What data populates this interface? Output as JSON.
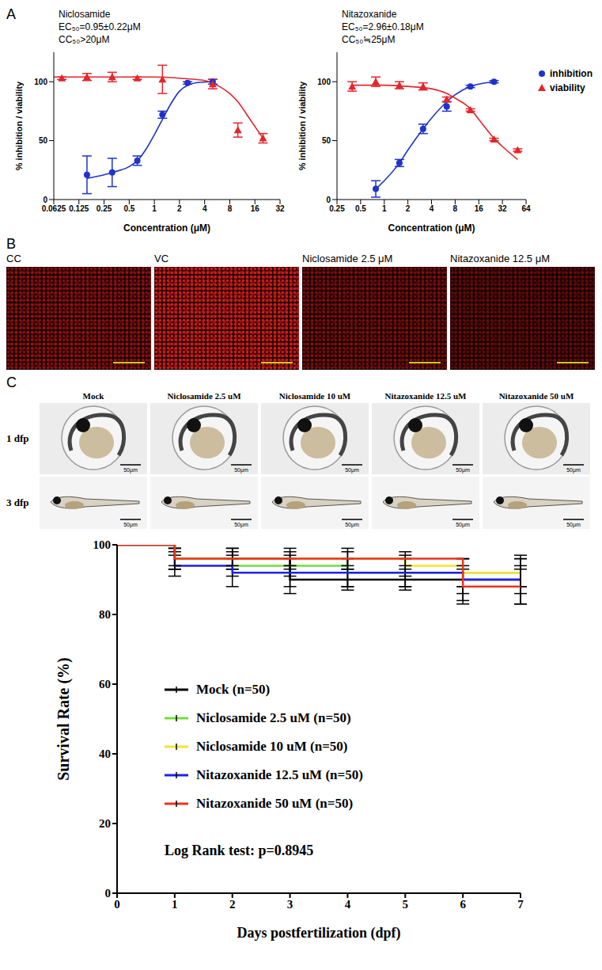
{
  "panel_labels": [
    "A",
    "B",
    "C"
  ],
  "chart_data": [
    {
      "type": "line",
      "title": "Niclosamide",
      "annotations": [
        "EC₅₀=0.95±0.22μM",
        "CC₅₀>20μM"
      ],
      "x_label": "Concentration (μM)",
      "y_label": "% inhibition / viability",
      "log": "x",
      "xlim": [
        0.0625,
        32
      ],
      "xticks": [
        0.0625,
        0.125,
        0.25,
        0.5,
        1,
        2,
        4,
        8,
        16,
        32
      ],
      "ylim": [
        0,
        125
      ],
      "yticks": [
        0,
        50,
        100
      ],
      "series": [
        {
          "name": "inhibition",
          "color": "#1f33c9",
          "marker": "circle",
          "x": [
            0.156,
            0.3125,
            0.625,
            1.25,
            2.5,
            5
          ],
          "values": [
            21,
            23,
            33,
            72,
            99,
            100
          ],
          "errors": [
            16,
            12,
            4,
            3,
            1,
            2
          ],
          "fit": {
            "x": [
              0.156,
              0.25,
              0.3125,
              0.5,
              0.625,
              0.8,
              1,
              1.25,
              1.6,
              2,
              2.5,
              3.5,
              5
            ],
            "values": [
              18,
              21,
              23,
              28,
              33,
              43,
              55,
              68,
              82,
              92,
              97,
              99.5,
              100
            ]
          }
        },
        {
          "name": "viability",
          "color": "#e3262b",
          "marker": "triangle",
          "x": [
            0.078,
            0.156,
            0.3125,
            0.625,
            1.25,
            5,
            10,
            20
          ],
          "values": [
            103,
            104,
            104,
            103,
            102,
            98,
            59,
            52
          ],
          "errors": [
            1,
            3,
            4,
            1,
            12,
            4,
            6,
            4
          ],
          "fit": {
            "x": [
              0.0625,
              0.25,
              1,
              2,
              4,
              6,
              8,
              10,
              14,
              20
            ],
            "values": [
              104,
              104,
              104,
              103,
              101,
              96,
              90,
              83,
              68,
              52
            ]
          }
        }
      ]
    },
    {
      "type": "line",
      "title": "Nitazoxanide",
      "annotations": [
        "EC₅₀=2.96±0.18μM",
        "CC₅₀≒25μM"
      ],
      "x_label": "Concentration (μM)",
      "y_label": "% inhibition / viability",
      "log": "x",
      "legend": "right",
      "xlim": [
        0.25,
        64
      ],
      "xticks": [
        0.25,
        0.5,
        1,
        2,
        4,
        8,
        16,
        32,
        64
      ],
      "ylim": [
        0,
        125
      ],
      "yticks": [
        0,
        50,
        100
      ],
      "series": [
        {
          "name": "inhibition",
          "color": "#1f33c9",
          "marker": "circle",
          "x": [
            0.78,
            1.56,
            3.125,
            6.25,
            12.5,
            25
          ],
          "values": [
            9,
            31,
            60,
            79,
            96,
            100
          ],
          "errors": [
            7,
            3,
            4,
            4,
            1,
            1
          ],
          "fit": {
            "x": [
              0.78,
              1,
              1.56,
              2,
              3.125,
              4,
              6.25,
              8,
              12.5,
              16,
              25
            ],
            "values": [
              9,
              16,
              31,
              42,
              60,
              69,
              83,
              89,
              96,
              98,
              100
            ]
          }
        },
        {
          "name": "viability",
          "color": "#e3262b",
          "marker": "triangle",
          "x": [
            0.39,
            0.78,
            1.56,
            3.125,
            6.25,
            12.5,
            25,
            50
          ],
          "values": [
            96,
            100,
            97,
            96,
            85,
            76,
            51,
            42
          ],
          "errors": [
            4,
            4,
            3,
            3,
            2,
            1,
            1,
            1
          ],
          "fit": {
            "x": [
              0.39,
              1,
              2,
              4,
              6.25,
              8,
              12.5,
              16,
              25,
              32,
              50
            ],
            "values": [
              97,
              97,
              96,
              94,
              90,
              86,
              77,
              68,
              52,
              45,
              34
            ]
          }
        }
      ]
    },
    {
      "type": "line",
      "line_style": "step",
      "x_label": "Days postfertilization (dpf)",
      "y_label": "Survival Rate (%)",
      "annotations": [
        "Log Rank test: p=0.8945"
      ],
      "legend": "left",
      "x": [
        0,
        1,
        2,
        3,
        4,
        5,
        6,
        7
      ],
      "xlim": [
        0,
        7
      ],
      "xticks": [
        0,
        1,
        2,
        3,
        4,
        5,
        6,
        7
      ],
      "ylim": [
        0,
        100
      ],
      "yticks": [
        0,
        20,
        40,
        60,
        80,
        100
      ],
      "series": [
        {
          "name": "Mock (n=50)",
          "color": "#000000",
          "values": [
            100,
            96,
            96,
            90,
            90,
            90,
            90,
            90
          ],
          "errors": [
            0,
            3,
            3,
            4,
            3,
            3,
            6,
            7
          ]
        },
        {
          "name": "Niclosamide 2.5 uM (n=50)",
          "color": "#72dd3c",
          "values": [
            100,
            96,
            94,
            94,
            92,
            92,
            92,
            92
          ],
          "errors": [
            0,
            3,
            3,
            3,
            4,
            4,
            4,
            4
          ]
        },
        {
          "name": "Niclosamide 10 uM (n=50)",
          "color": "#f2e431",
          "values": [
            100,
            96,
            96,
            96,
            96,
            94,
            92,
            92
          ],
          "errors": [
            0,
            3,
            3,
            3,
            3,
            3,
            4,
            4
          ]
        },
        {
          "name": "Nitazoxanide 12.5 uM (n=50)",
          "color": "#1f1ff0",
          "values": [
            100,
            94,
            92,
            92,
            92,
            92,
            90,
            90
          ],
          "errors": [
            0,
            3,
            4,
            4,
            4,
            4,
            4,
            4
          ]
        },
        {
          "name": "Nitazoxanide 50 uM (n=50)",
          "color": "#e8341f",
          "values": [
            100,
            96,
            96,
            96,
            96,
            96,
            88,
            88
          ],
          "errors": [
            0,
            2,
            2,
            2,
            2,
            2,
            5,
            5
          ]
        }
      ]
    }
  ],
  "panel_b": {
    "labels": [
      "CC",
      "VC",
      "Niclosamide 2.5 μM",
      "Nitazoxanide 12.5 μM"
    ]
  },
  "panel_c_images": {
    "columns": [
      "Mock",
      "Niclosamide 2.5 uM",
      "Niclosamide 10 uM",
      "Nitazoxanide 12.5 uM",
      "Nitazoxanide 50 uM"
    ],
    "rows": [
      "1 dfp",
      "3 dfp"
    ],
    "scale_bar": "50μm"
  }
}
